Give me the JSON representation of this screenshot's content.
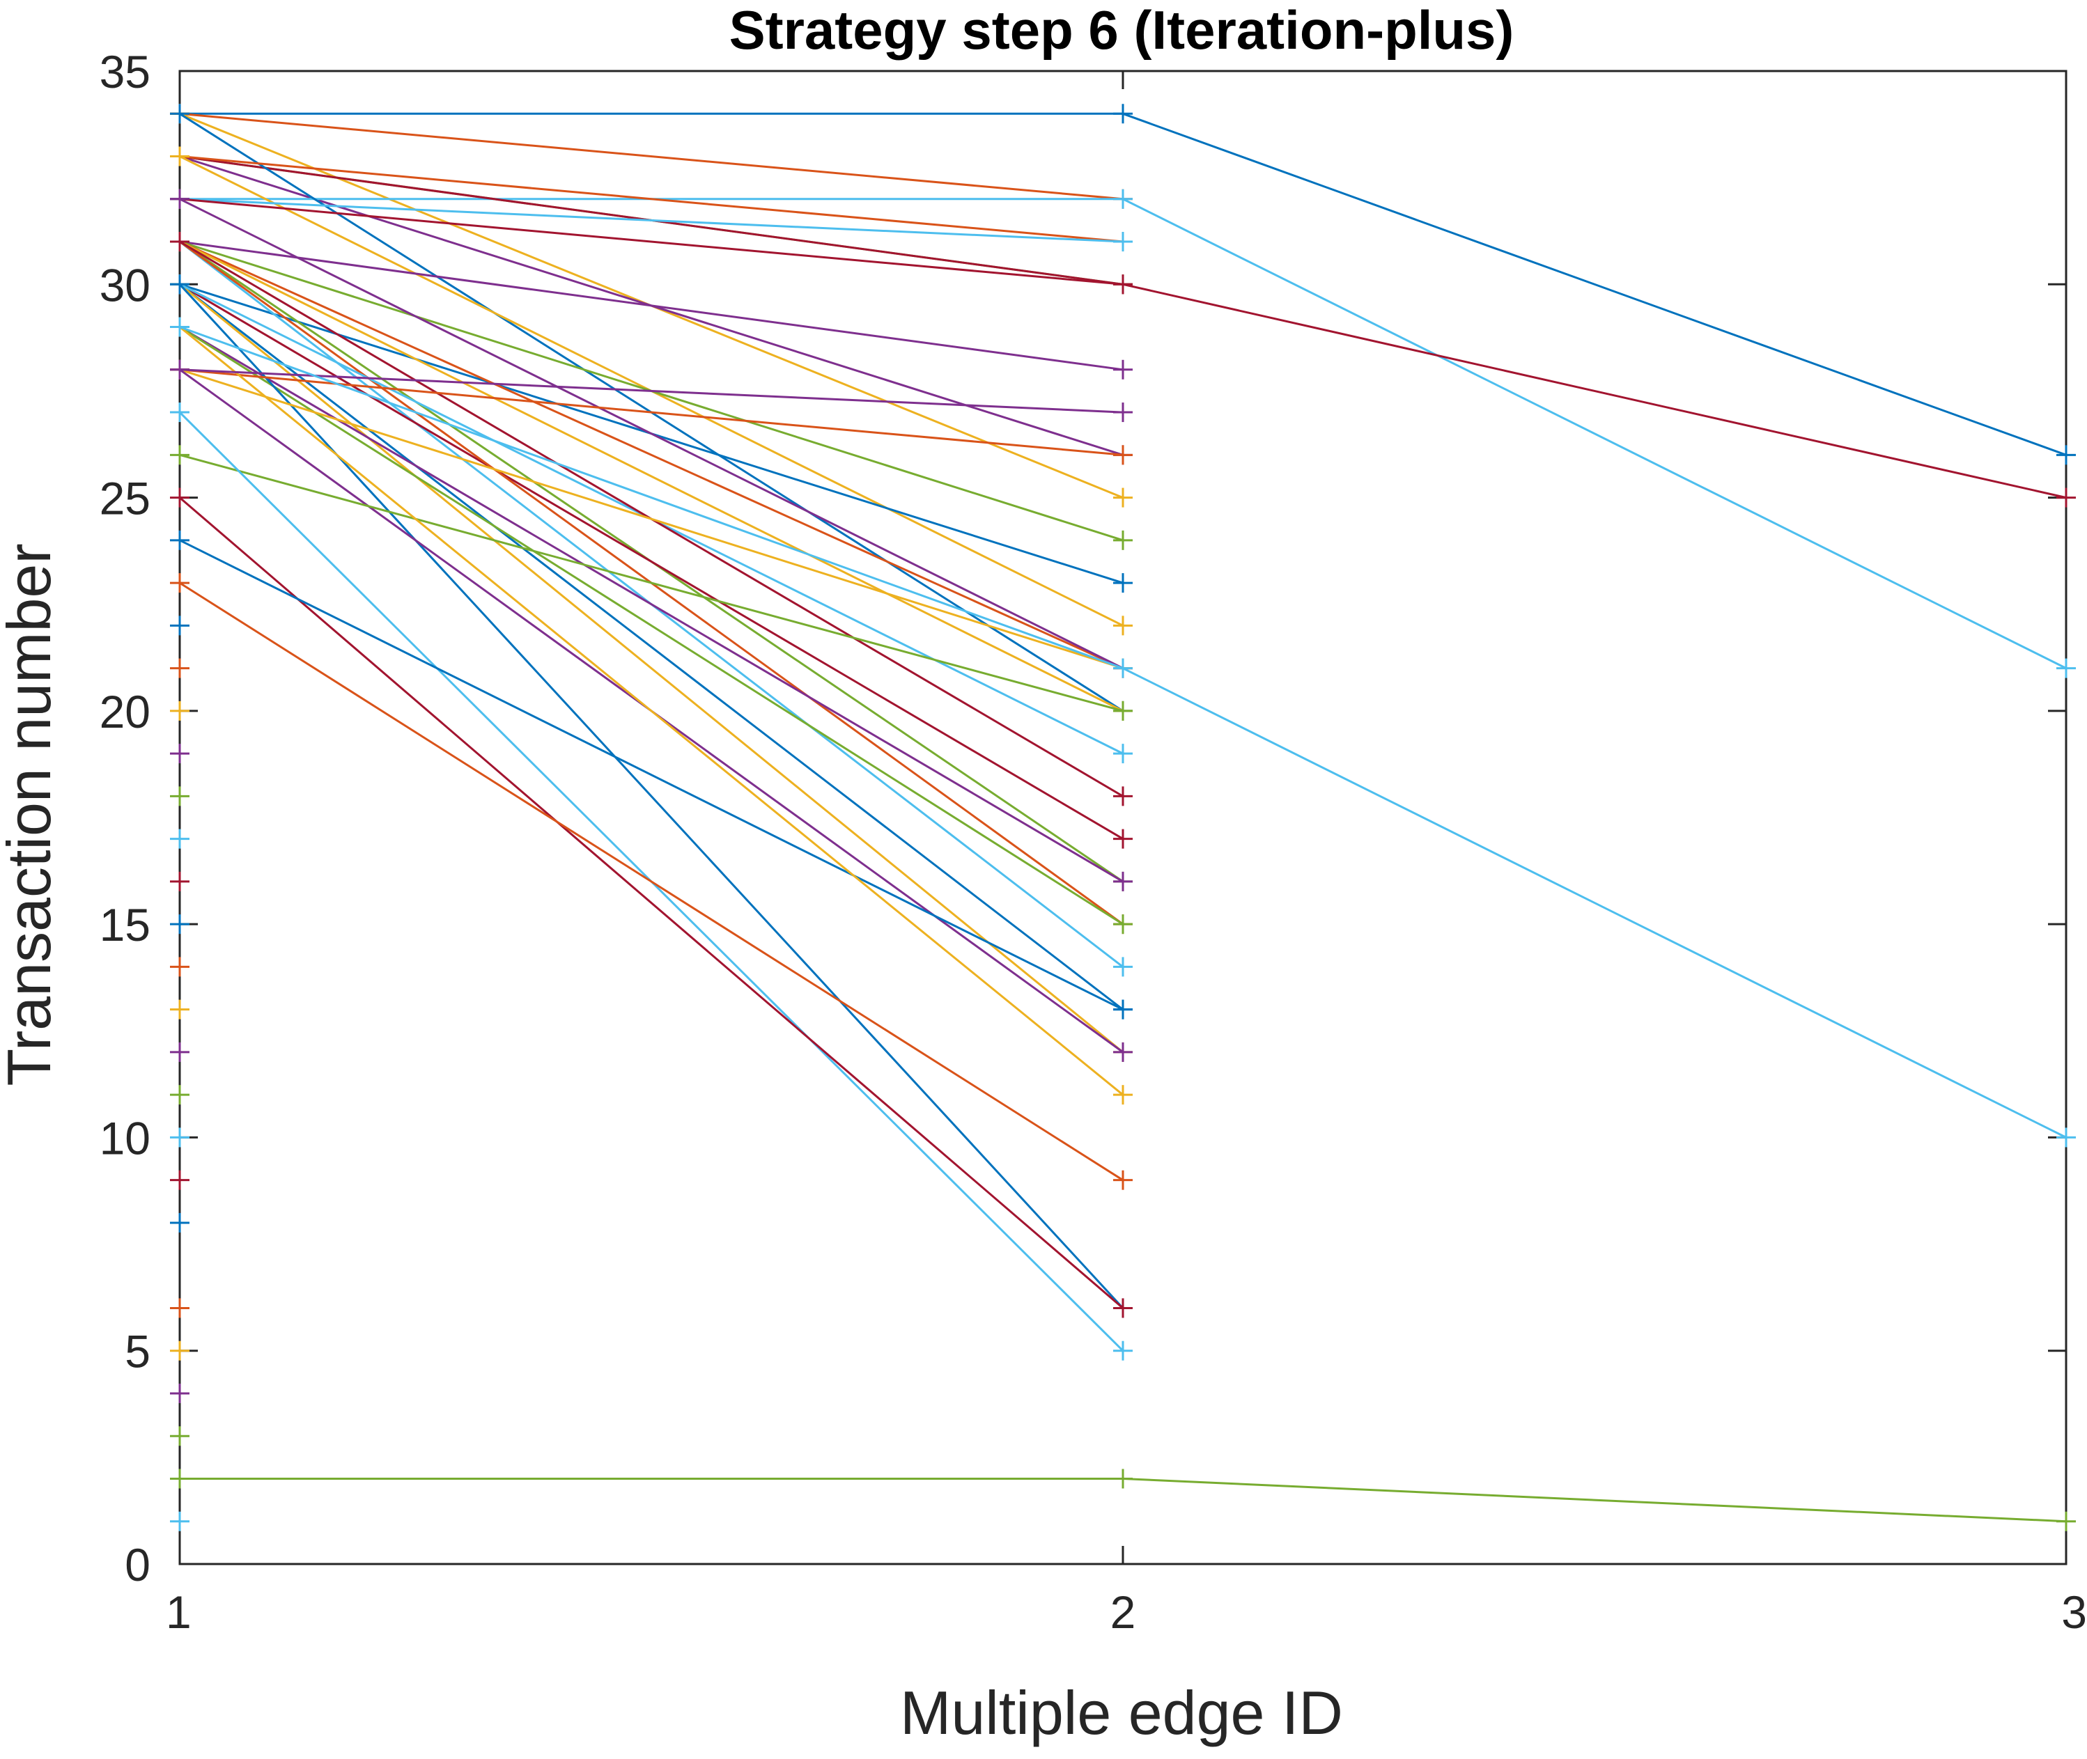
{
  "chart_data": {
    "type": "line",
    "title": "Strategy step 6 (Iteration-plus)",
    "xlabel": "Multiple edge ID",
    "ylabel": "Transaction number",
    "xlim": [
      1,
      3
    ],
    "ylim": [
      0,
      35
    ],
    "xticks": [
      1,
      2,
      3
    ],
    "yticks": [
      0,
      5,
      10,
      15,
      20,
      25,
      30,
      35
    ],
    "marker": "+",
    "grid": false,
    "legend": "none",
    "colors": [
      "#0072BD",
      "#D95319",
      "#EDB120",
      "#7E2F8E",
      "#77AC30",
      "#4DBEEE",
      "#A2142F"
    ],
    "series": [
      {
        "x": [
          1,
          2,
          3
        ],
        "y": [
          34,
          34,
          26
        ]
      },
      {
        "x": [
          1,
          2
        ],
        "y": [
          34,
          32
        ]
      },
      {
        "x": [
          1,
          2
        ],
        "y": [
          34,
          25
        ]
      },
      {
        "x": [
          1,
          2
        ],
        "y": [
          33,
          26
        ]
      },
      {
        "x": [
          1,
          2
        ],
        "y": [
          33,
          30
        ]
      },
      {
        "x": [
          1,
          2,
          3
        ],
        "y": [
          32,
          32,
          21
        ]
      },
      {
        "x": [
          1,
          2,
          3
        ],
        "y": [
          33,
          30,
          25
        ]
      },
      {
        "x": [
          1,
          2
        ],
        "y": [
          34,
          20
        ]
      },
      {
        "x": [
          1,
          2
        ],
        "y": [
          33,
          31
        ]
      },
      {
        "x": [
          1,
          2
        ],
        "y": [
          33,
          22
        ]
      },
      {
        "x": [
          1,
          2
        ],
        "y": [
          31,
          28
        ]
      },
      {
        "x": [
          1,
          2
        ],
        "y": [
          31,
          24
        ]
      },
      {
        "x": [
          1,
          2
        ],
        "y": [
          32,
          31
        ]
      },
      {
        "x": [
          1,
          2
        ],
        "y": [
          32,
          30
        ]
      },
      {
        "x": [
          1,
          2
        ],
        "y": [
          30,
          23
        ]
      },
      {
        "x": [
          1,
          2
        ],
        "y": [
          31,
          21
        ]
      },
      {
        "x": [
          1,
          2
        ],
        "y": [
          31,
          20
        ]
      },
      {
        "x": [
          1,
          2
        ],
        "y": [
          32,
          21
        ]
      },
      {
        "x": [
          1,
          2
        ],
        "y": [
          31,
          16
        ]
      },
      {
        "x": [
          1,
          2
        ],
        "y": [
          31,
          14
        ]
      },
      {
        "x": [
          1,
          2
        ],
        "y": [
          30,
          17
        ]
      },
      {
        "x": [
          1,
          2
        ],
        "y": [
          30,
          13
        ]
      },
      {
        "x": [
          1,
          2
        ],
        "y": [
          31,
          15
        ]
      },
      {
        "x": [
          1,
          2
        ],
        "y": [
          30,
          12
        ]
      },
      {
        "x": [
          1,
          2
        ],
        "y": [
          29,
          16
        ]
      },
      {
        "x": [
          1,
          2
        ],
        "y": [
          29,
          15
        ]
      },
      {
        "x": [
          1,
          2
        ],
        "y": [
          30,
          19
        ]
      },
      {
        "x": [
          1,
          2
        ],
        "y": [
          31,
          18
        ]
      },
      {
        "x": [
          1,
          2
        ],
        "y": [
          30,
          6
        ]
      },
      {
        "x": [
          1,
          2
        ],
        "y": [
          28,
          26
        ]
      },
      {
        "x": [
          1,
          2
        ],
        "y": [
          28,
          21
        ]
      },
      {
        "x": [
          1,
          2
        ],
        "y": [
          28,
          12
        ]
      },
      {
        "x": [
          1,
          2
        ],
        "y": [
          26,
          20
        ]
      },
      {
        "x": [
          1,
          2
        ],
        "y": [
          27,
          5
        ]
      },
      {
        "x": [
          1,
          2
        ],
        "y": [
          25,
          6
        ]
      },
      {
        "x": [
          1,
          2
        ],
        "y": [
          24,
          13
        ]
      },
      {
        "x": [
          1,
          2
        ],
        "y": [
          23,
          9
        ]
      },
      {
        "x": [
          1,
          2
        ],
        "y": [
          29,
          11
        ]
      },
      {
        "x": [
          1,
          2
        ],
        "y": [
          28,
          27
        ]
      },
      {
        "x": [
          1,
          2,
          3
        ],
        "y": [
          2,
          2,
          1
        ]
      },
      {
        "x": [
          1,
          2,
          3
        ],
        "y": [
          29,
          21,
          10
        ]
      }
    ],
    "unpaired_points": [
      {
        "x": 1,
        "y": [
          22,
          21,
          20,
          19,
          18,
          17,
          16,
          15,
          14,
          13,
          12,
          11,
          10,
          9,
          8,
          6,
          5,
          4,
          3,
          1
        ]
      }
    ]
  }
}
